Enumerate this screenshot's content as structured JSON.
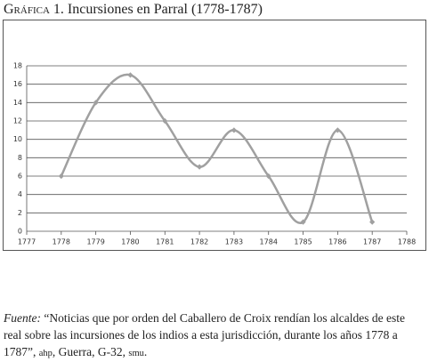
{
  "chart_data": {
    "type": "line",
    "title_prefix": "Gráfica",
    "title": "1. Incursiones en Parral (1778-1787)",
    "x": [
      1778,
      1779,
      1780,
      1781,
      1782,
      1783,
      1784,
      1785,
      1786,
      1787
    ],
    "values": [
      6,
      14,
      17,
      12,
      7,
      11,
      6,
      1,
      11,
      1
    ],
    "color": "#a0a0a0",
    "xlim": [
      1777,
      1788
    ],
    "xticks": [
      1777,
      1778,
      1779,
      1780,
      1781,
      1782,
      1783,
      1784,
      1785,
      1786,
      1787,
      1788
    ],
    "ylim": [
      0,
      18
    ],
    "yticks": [
      0,
      2,
      4,
      6,
      8,
      10,
      12,
      14,
      16,
      18
    ],
    "grid": true,
    "smooth": true
  },
  "source": {
    "label": "Fuente:",
    "text": "“Noticias que por orden del Caballero de Croix rendían los alcaldes de este real sobre las incursiones de los indios a esta jurisdicción, durante los años 1778 a 1787”,",
    "archive": "ahp",
    "text2": ", Guerra, G-32,",
    "archive2": "smu",
    "end": "."
  }
}
